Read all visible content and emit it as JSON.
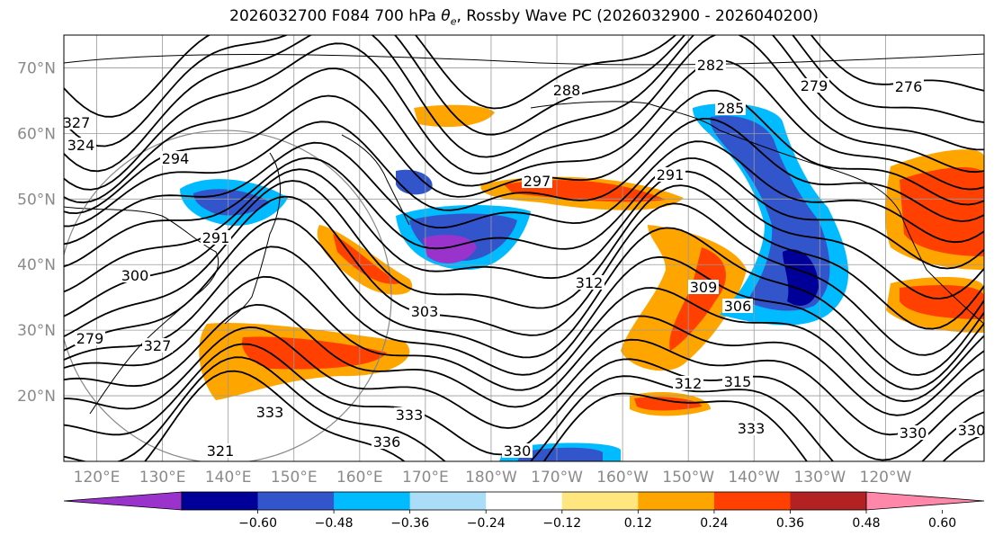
{
  "chart_data": {
    "type": "contour_map",
    "title_prefix": "2026032700 F084 700 hPa ",
    "title_var": "θ",
    "title_var_sub": "e",
    "title_suffix": ", Rossby Wave PC (2026032900 - 2026040200)",
    "lat_ticks": [
      "70°N",
      "60°N",
      "50°N",
      "40°N",
      "30°N",
      "20°N"
    ],
    "lon_ticks": [
      "120°E",
      "130°E",
      "140°E",
      "150°E",
      "160°E",
      "170°E",
      "180°W",
      "170°W",
      "160°W",
      "150°W",
      "140°W",
      "130°W",
      "120°W"
    ],
    "lat_range": [
      10,
      75
    ],
    "lon_range": [
      115,
      255
    ],
    "colorbar": {
      "ticks": [
        "−0.60",
        "−0.48",
        "−0.36",
        "−0.24",
        "−0.12",
        "0.12",
        "0.24",
        "0.36",
        "0.48",
        "0.60"
      ],
      "colors": [
        "#9933cc",
        "#000099",
        "#3355cc",
        "#00bbff",
        "#aaddf8",
        "#ffffff",
        "#ffe67f",
        "#ffa500",
        "#ff4000",
        "#b22222",
        "#ff88aa"
      ]
    },
    "contour_labels": [
      "282",
      "279",
      "288",
      "285",
      "294",
      "291",
      "297",
      "291",
      "300",
      "303",
      "309",
      "306",
      "312",
      "312",
      "315",
      "321",
      "327",
      "330",
      "330",
      "333",
      "333",
      "336",
      "333",
      "330",
      "327",
      "324",
      "276",
      "279"
    ]
  }
}
